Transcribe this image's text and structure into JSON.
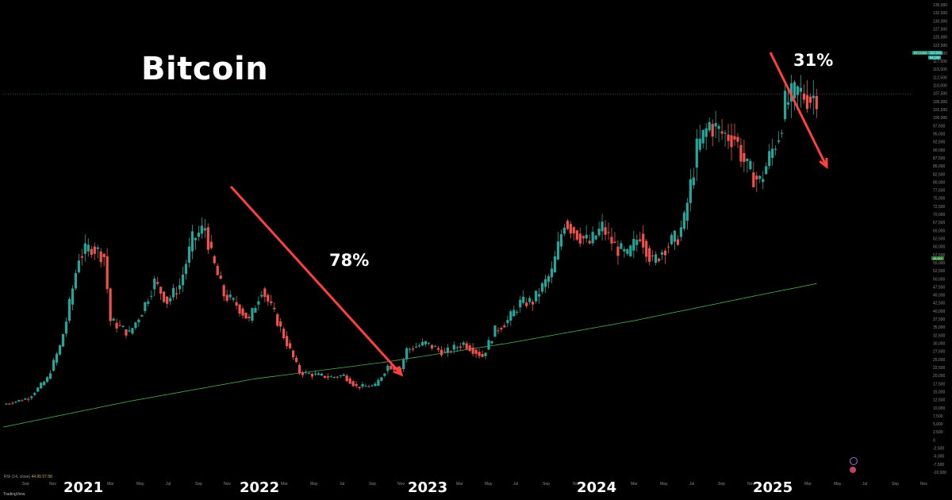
{
  "title": "Bitcoin",
  "annotations": {
    "drop_2022": "78%",
    "drop_2025": "31%"
  },
  "colors": {
    "background": "#000000",
    "up": "#26a69a",
    "down": "#ef5350",
    "ma_line": "#4caf50",
    "arrow": "#ff4040"
  },
  "rsi_label": {
    "name": "RSI (14, close)",
    "value1": "44.95",
    "value2": "57.58"
  },
  "brand": "TradingView",
  "price_badge": {
    "symbol": "BTCUSD",
    "price": "107,370",
    "sub": "54,195"
  },
  "ma_badge": "48,510",
  "chart_data": {
    "type": "candlestick",
    "ylim": [
      -10000,
      135000
    ],
    "yticks": [
      -10000,
      -7500,
      -5000,
      -2500,
      0,
      2500,
      5000,
      7500,
      10000,
      12500,
      15000,
      17500,
      20000,
      22500,
      25000,
      27500,
      30000,
      32500,
      35000,
      37500,
      40000,
      42500,
      45000,
      47500,
      50000,
      52500,
      55000,
      57500,
      60000,
      62500,
      65000,
      67500,
      70000,
      72500,
      75000,
      77500,
      80000,
      82500,
      85000,
      87500,
      90000,
      92500,
      95000,
      97500,
      100000,
      102500,
      105000,
      107500,
      110000,
      112500,
      115000,
      117500,
      120000,
      122500,
      125000,
      127500,
      130000,
      132500,
      135000
    ],
    "ytick_labels": [
      "-10,000",
      "-7,500",
      "-5,000",
      "-2,500",
      "0",
      "2,500",
      "5,000",
      "7,500",
      "10,000",
      "12,500",
      "15,000",
      "17,500",
      "20,000",
      "22,500",
      "25,000",
      "27,500",
      "30,000",
      "32,500",
      "35,000",
      "37,500",
      "40,000",
      "42,500",
      "45,000",
      "47,500",
      "50,000",
      "52,500",
      "55,000",
      "57,500",
      "60,000",
      "62,500",
      "65,000",
      "67,500",
      "70,000",
      "72,500",
      "75,000",
      "77,500",
      "80,000",
      "82,500",
      "85,000",
      "87,500",
      "90,000",
      "92,500",
      "95,000",
      "97,500",
      "100,000",
      "102,500",
      "105,000",
      "107,500",
      "110,000",
      "112,500",
      "115,000",
      "117,500",
      "120,000",
      "122,500",
      "125,000",
      "127,500",
      "130,000",
      "132,500",
      "135,000"
    ],
    "x_month_labels": [
      "Sep",
      "Nov",
      "Mar",
      "May",
      "Jul",
      "Sep",
      "Nov",
      "Mar",
      "May",
      "Jul",
      "Sep",
      "Nov",
      "Mar",
      "May",
      "Jul",
      "Sep",
      "Nov",
      "Mar",
      "May",
      "Jul",
      "Sep",
      "Nov",
      "Mar",
      "May",
      "Jul",
      "Sep",
      "Nov"
    ],
    "x_year_labels": [
      "2021",
      "2022",
      "2023",
      "2024",
      "2025"
    ],
    "last_price": 107370,
    "ma_last": 48510,
    "candles_weekly_anchor_closes": [
      [
        0,
        11000
      ],
      [
        8,
        13000
      ],
      [
        14,
        19000
      ],
      [
        18,
        29000
      ],
      [
        20,
        37000
      ],
      [
        24,
        57000
      ],
      [
        28,
        60000
      ],
      [
        32,
        57000
      ],
      [
        34,
        37000
      ],
      [
        40,
        33000
      ],
      [
        44,
        40000
      ],
      [
        48,
        49000
      ],
      [
        52,
        43000
      ],
      [
        56,
        48000
      ],
      [
        60,
        62000
      ],
      [
        64,
        66000
      ],
      [
        66,
        57000
      ],
      [
        70,
        45000
      ],
      [
        74,
        42000
      ],
      [
        78,
        37000
      ],
      [
        82,
        47000
      ],
      [
        86,
        39000
      ],
      [
        90,
        30000
      ],
      [
        94,
        21000
      ],
      [
        100,
        20000
      ],
      [
        104,
        19500
      ],
      [
        108,
        20000
      ],
      [
        112,
        16500
      ],
      [
        118,
        16800
      ],
      [
        122,
        23000
      ],
      [
        126,
        22000
      ],
      [
        128,
        28000
      ],
      [
        134,
        30000
      ],
      [
        140,
        27000
      ],
      [
        146,
        30000
      ],
      [
        152,
        26000
      ],
      [
        156,
        34000
      ],
      [
        160,
        37000
      ],
      [
        164,
        42500
      ],
      [
        168,
        43000
      ],
      [
        174,
        52000
      ],
      [
        178,
        68000
      ],
      [
        182,
        64000
      ],
      [
        186,
        61000
      ],
      [
        190,
        66000
      ],
      [
        194,
        60000
      ],
      [
        198,
        57000
      ],
      [
        202,
        64000
      ],
      [
        206,
        55000
      ],
      [
        210,
        60000
      ],
      [
        214,
        63000
      ],
      [
        216,
        68000
      ],
      [
        220,
        90000
      ],
      [
        224,
        98000
      ],
      [
        228,
        95000
      ],
      [
        232,
        94000
      ],
      [
        236,
        84000
      ],
      [
        240,
        80000
      ],
      [
        242,
        85000
      ],
      [
        246,
        95000
      ],
      [
        248,
        104000
      ],
      [
        252,
        108000
      ],
      [
        256,
        106000
      ],
      [
        258,
        107370
      ]
    ],
    "ma_series_anchor": [
      [
        0,
        4000
      ],
      [
        40,
        12000
      ],
      [
        80,
        19000
      ],
      [
        120,
        24000
      ],
      [
        160,
        30000
      ],
      [
        200,
        37000
      ],
      [
        240,
        45000
      ],
      [
        258,
        48510
      ]
    ]
  }
}
